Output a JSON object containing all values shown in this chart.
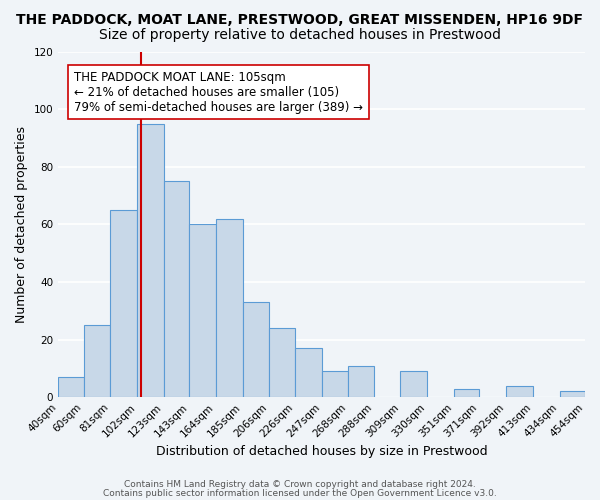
{
  "title": "THE PADDOCK, MOAT LANE, PRESTWOOD, GREAT MISSENDEN, HP16 9DF",
  "subtitle": "Size of property relative to detached houses in Prestwood",
  "xlabel": "Distribution of detached houses by size in Prestwood",
  "ylabel": "Number of detached properties",
  "bin_edges": [
    40,
    60,
    81,
    102,
    123,
    143,
    164,
    185,
    206,
    226,
    247,
    268,
    288,
    309,
    330,
    351,
    371,
    392,
    413,
    434,
    454
  ],
  "bar_heights": [
    7,
    25,
    65,
    95,
    75,
    60,
    62,
    33,
    24,
    17,
    9,
    11,
    0,
    9,
    0,
    3,
    0,
    4,
    0,
    2
  ],
  "bar_color": "#c8d8e8",
  "bar_edge_color": "#5b9bd5",
  "vline_x": 105,
  "vline_color": "#cc0000",
  "annotation_text": "THE PADDOCK MOAT LANE: 105sqm\n← 21% of detached houses are smaller (105)\n79% of semi-detached houses are larger (389) →",
  "annotation_box_color": "#ffffff",
  "annotation_box_edge_color": "#cc0000",
  "ylim": [
    0,
    120
  ],
  "yticks": [
    0,
    20,
    40,
    60,
    80,
    100,
    120
  ],
  "tick_labels": [
    "40sqm",
    "60sqm",
    "81sqm",
    "102sqm",
    "123sqm",
    "143sqm",
    "164sqm",
    "185sqm",
    "206sqm",
    "226sqm",
    "247sqm",
    "268sqm",
    "288sqm",
    "309sqm",
    "330sqm",
    "351sqm",
    "371sqm",
    "392sqm",
    "413sqm",
    "434sqm",
    "454sqm"
  ],
  "footer1": "Contains HM Land Registry data © Crown copyright and database right 2024.",
  "footer2": "Contains public sector information licensed under the Open Government Licence v3.0.",
  "background_color": "#f0f4f8",
  "grid_color": "#ffffff",
  "title_fontsize": 10,
  "subtitle_fontsize": 10,
  "axis_label_fontsize": 9,
  "tick_fontsize": 7.5,
  "annotation_fontsize": 8.5
}
